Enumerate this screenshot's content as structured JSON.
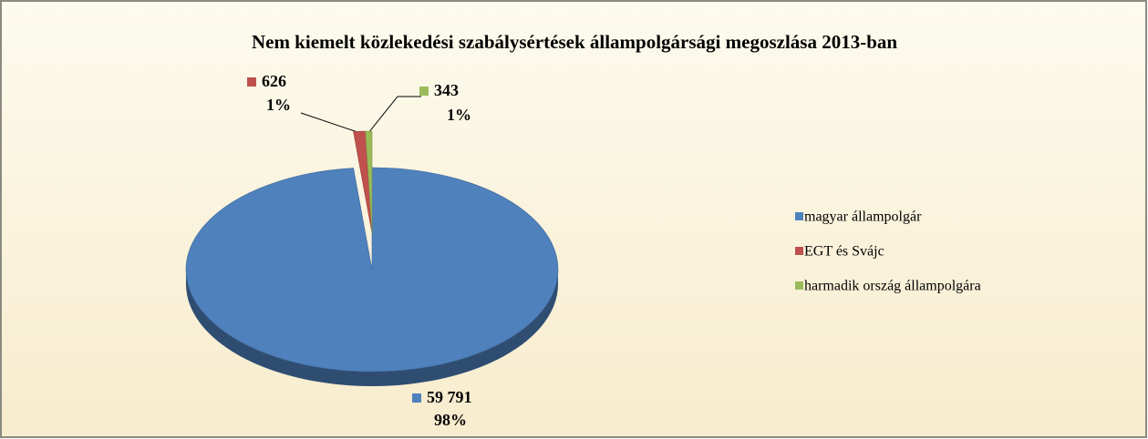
{
  "chart_data": {
    "type": "pie",
    "title": "Nem kiemelt közlekedési szabálysértések állampolgársági megoszlása 2013-ban",
    "categories": [
      "magyar állampolgár",
      "EGT és Svájc",
      "harmadik ország állampolgára"
    ],
    "values": [
      59791,
      626,
      343
    ],
    "value_labels": [
      "59 791",
      "626",
      "343"
    ],
    "percent_labels": [
      "98%",
      "1%",
      "1%"
    ],
    "colors": [
      "#4f81bd",
      "#c0504d",
      "#9bbb59"
    ],
    "legend": "right"
  }
}
